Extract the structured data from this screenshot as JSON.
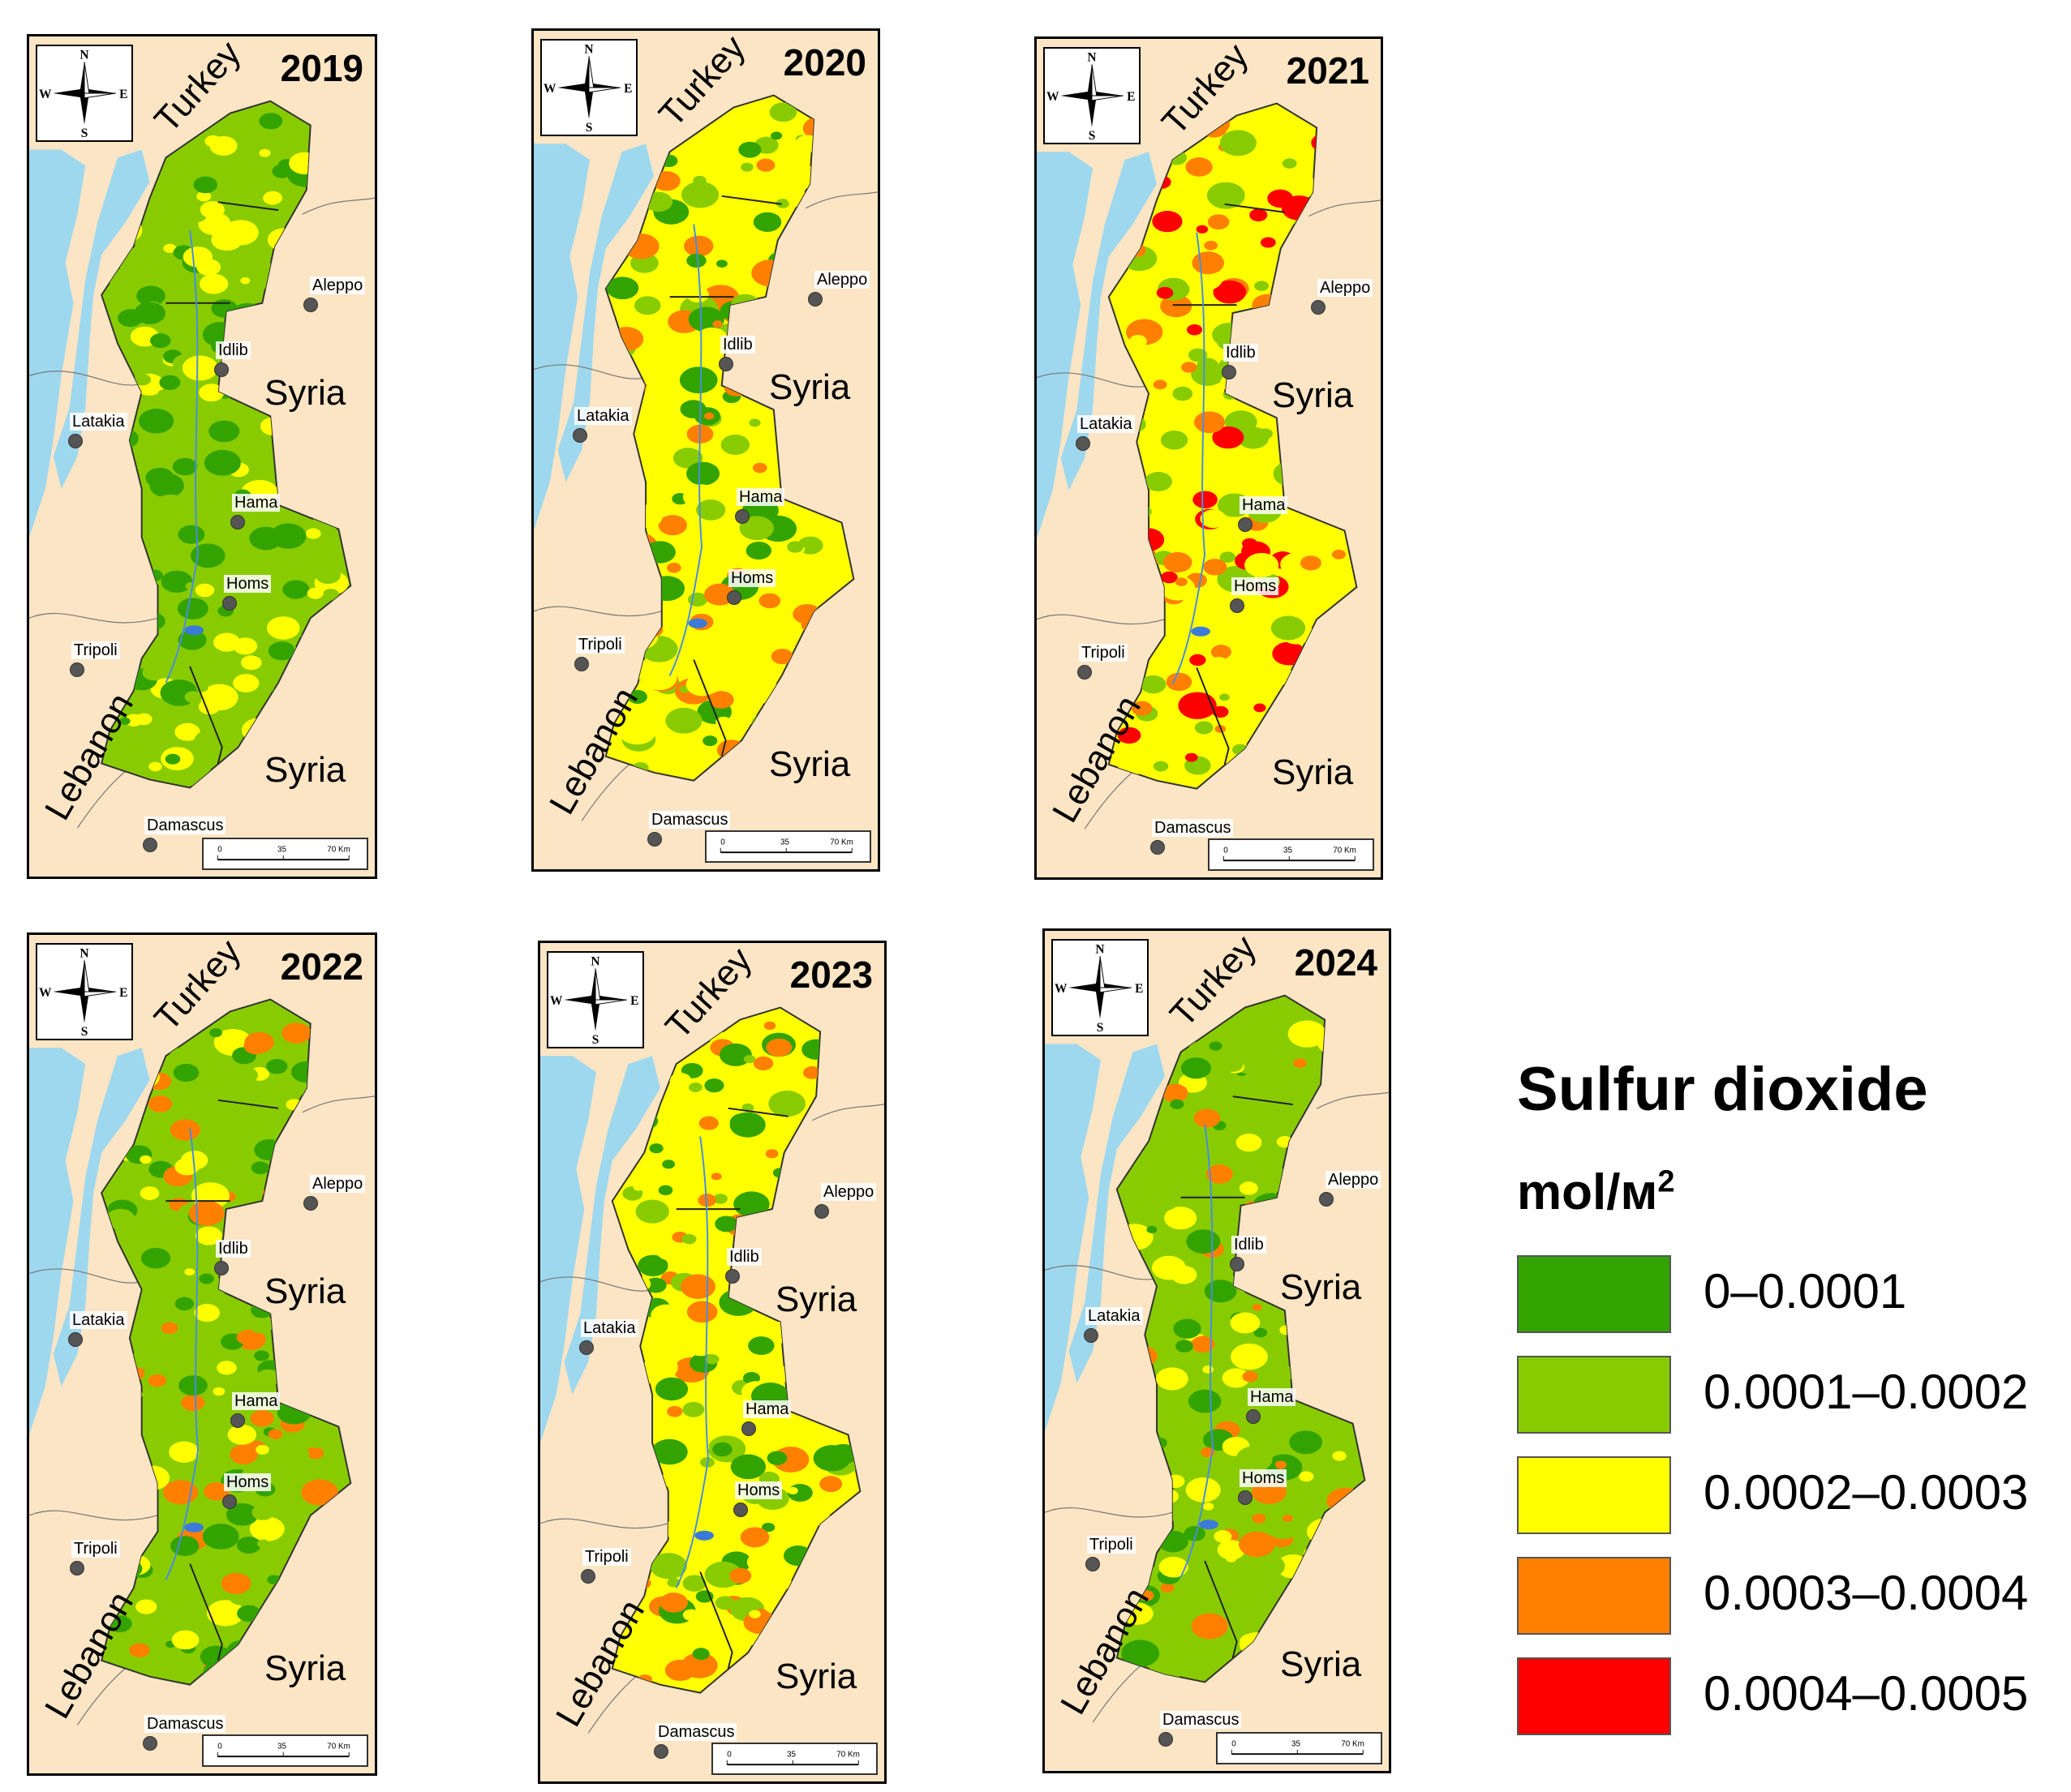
{
  "panels": [
    {
      "year": "2019",
      "syria_top": "Syria",
      "syria_bottom": "Syria",
      "turkey": "Turkey",
      "lebanon": "Lebanon",
      "cities": {
        "aleppo": "Aleppo",
        "idlib": "Idlib",
        "latakia": "Latakia",
        "hama": "Hama",
        "homs": "Homs",
        "tripoli": "Tripoli",
        "damascus": "Damascus"
      },
      "compass": {
        "n": "N",
        "s": "S",
        "e": "E",
        "w": "W"
      },
      "scale": {
        "t0": "0",
        "t1": "35",
        "t2": "70 Km"
      },
      "dominant_class": "0.0001–0.0002",
      "presence": [
        "0–0.0001",
        "0.0001–0.0002",
        "0.0002–0.0003"
      ]
    },
    {
      "year": "2020",
      "syria_top": "Syria",
      "syria_bottom": "Syria",
      "turkey": "Turkey",
      "lebanon": "Lebanon",
      "cities": {
        "aleppo": "Aleppo",
        "idlib": "Idlib",
        "latakia": "Latakia",
        "hama": "Hama",
        "homs": "Homs",
        "tripoli": "Tripoli",
        "damascus": "Damascus"
      },
      "compass": {
        "n": "N",
        "s": "S",
        "e": "E",
        "w": "W"
      },
      "scale": {
        "t0": "0",
        "t1": "35",
        "t2": "70 Km"
      },
      "dominant_class": "0.0002–0.0003",
      "presence": [
        "0–0.0001",
        "0.0001–0.0002",
        "0.0002–0.0003",
        "0.0003–0.0004"
      ]
    },
    {
      "year": "2021",
      "syria_top": "Syria",
      "syria_bottom": "Syria",
      "turkey": "Turkey",
      "lebanon": "Lebanon",
      "cities": {
        "aleppo": "Aleppo",
        "idlib": "Idlib",
        "latakia": "Latakia",
        "hama": "Hama",
        "homs": "Homs",
        "tripoli": "Tripoli",
        "damascus": "Damascus"
      },
      "compass": {
        "n": "N",
        "s": "S",
        "e": "E",
        "w": "W"
      },
      "scale": {
        "t0": "0",
        "t1": "35",
        "t2": "70 Km"
      },
      "dominant_class": "0.0002–0.0003",
      "presence": [
        "0.0001–0.0002",
        "0.0002–0.0003",
        "0.0003–0.0004",
        "0.0004–0.0005"
      ]
    },
    {
      "year": "2022",
      "syria_top": "Syria",
      "syria_bottom": "Syria",
      "turkey": "Turkey",
      "lebanon": "Lebanon",
      "cities": {
        "aleppo": "Aleppo",
        "idlib": "Idlib",
        "latakia": "Latakia",
        "hama": "Hama",
        "homs": "Homs",
        "tripoli": "Tripoli",
        "damascus": "Damascus"
      },
      "compass": {
        "n": "N",
        "s": "S",
        "e": "E",
        "w": "W"
      },
      "scale": {
        "t0": "0",
        "t1": "35",
        "t2": "70 Km"
      },
      "dominant_class": "0.0001–0.0002",
      "presence": [
        "0–0.0001",
        "0.0001–0.0002",
        "0.0002–0.0003",
        "0.0003–0.0004"
      ]
    },
    {
      "year": "2023",
      "syria_top": "Syria",
      "syria_bottom": "Syria",
      "turkey": "Turkey",
      "lebanon": "Lebanon",
      "cities": {
        "aleppo": "Aleppo",
        "idlib": "Idlib",
        "latakia": "Latakia",
        "hama": "Hama",
        "homs": "Homs",
        "tripoli": "Tripoli",
        "damascus": "Damascus"
      },
      "compass": {
        "n": "N",
        "s": "S",
        "e": "E",
        "w": "W"
      },
      "scale": {
        "t0": "0",
        "t1": "35",
        "t2": "70 Km"
      },
      "dominant_class": "0.0002–0.0003",
      "presence": [
        "0–0.0001",
        "0.0001–0.0002",
        "0.0002–0.0003",
        "0.0003–0.0004"
      ]
    },
    {
      "year": "2024",
      "syria_top": "Syria",
      "syria_bottom": "Syria",
      "turkey": "Turkey",
      "lebanon": "Lebanon",
      "cities": {
        "aleppo": "Aleppo",
        "idlib": "Idlib",
        "latakia": "Latakia",
        "hama": "Hama",
        "homs": "Homs",
        "tripoli": "Tripoli",
        "damascus": "Damascus"
      },
      "compass": {
        "n": "N",
        "s": "S",
        "e": "E",
        "w": "W"
      },
      "scale": {
        "t0": "0",
        "t1": "35",
        "t2": "70 Km"
      },
      "dominant_class": "0.0001–0.0002",
      "presence": [
        "0–0.0001",
        "0.0001–0.0002",
        "0.0002–0.0003",
        "0.0003–0.0004"
      ]
    }
  ],
  "legend": {
    "title": "Sulfur dioxide",
    "unit": "mol/м",
    "unit_exp": "2",
    "items": [
      {
        "label": "0–0.0001",
        "color": "#33a300"
      },
      {
        "label": "0.0001–0.0002",
        "color": "#88cc00"
      },
      {
        "label": "0.0002–0.0003",
        "color": "#ffff00"
      },
      {
        "label": "0.0003–0.0004",
        "color": "#ff8000"
      },
      {
        "label": "0.0004–0.0005",
        "color": "#ff0000"
      }
    ]
  },
  "colors": {
    "background": "#fbe5c4",
    "sea": "#9ed8ee",
    "border": "#000000"
  }
}
